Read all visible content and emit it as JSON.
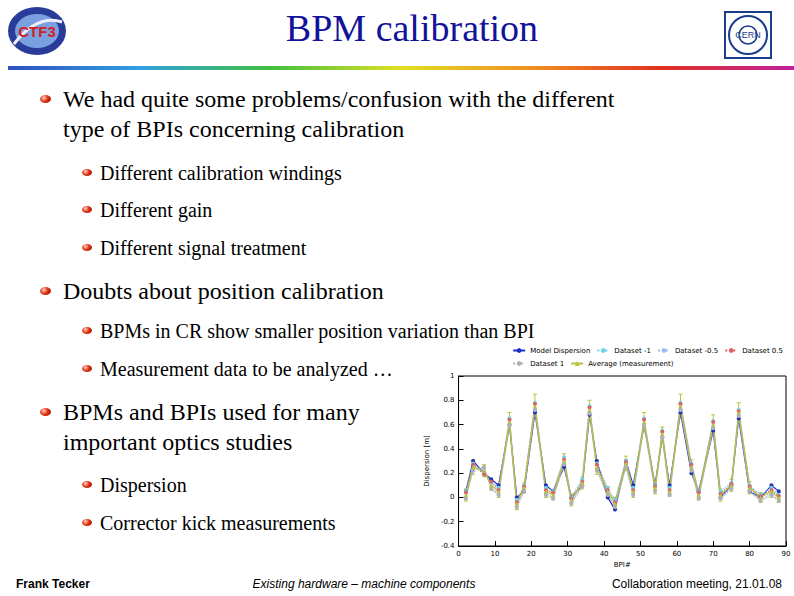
{
  "header": {
    "title": "BPM calibration"
  },
  "logos": {
    "left": "CTF3",
    "right": "CERN"
  },
  "bullets": [
    {
      "level": 1,
      "lines": [
        "We had quite some problems/confusion with the different",
        "type of BPIs concerning calibration"
      ]
    },
    {
      "level": 2,
      "lines": [
        "Different calibration windings"
      ]
    },
    {
      "level": 2,
      "lines": [
        "Different gain"
      ]
    },
    {
      "level": 2,
      "lines": [
        "Different signal treatment"
      ]
    },
    {
      "level": 1,
      "lines": [
        "Doubts about position calibration"
      ]
    },
    {
      "level": 2,
      "lines": [
        "BPMs in CR show smaller position variation than BPI"
      ]
    },
    {
      "level": 2,
      "lines": [
        "Measurement data to be analyzed …"
      ]
    },
    {
      "level": 1,
      "lines": [
        "BPMs and BPIs used for many",
        "important optics studies"
      ]
    },
    {
      "level": 2,
      "lines": [
        "Dispersion"
      ]
    },
    {
      "level": 2,
      "lines": [
        "Corrector kick measurements"
      ]
    }
  ],
  "footer": {
    "left": "Frank Tecker",
    "center": "Existing hardware – machine components",
    "right": "Collaboration meeting, 21.01.08"
  },
  "chart_data": {
    "type": "line",
    "x_label": "BPI#",
    "y_label": "Dispersion [m]",
    "legend": "top-right",
    "grid": false,
    "x": [
      2,
      4,
      7,
      9,
      11,
      14,
      16,
      18,
      21,
      24,
      26,
      29,
      31,
      34,
      36,
      38,
      41,
      43,
      46,
      48,
      51,
      54,
      56,
      58,
      61,
      64,
      66,
      70,
      72,
      75,
      77,
      80,
      83,
      86,
      88
    ],
    "xlim": [
      0,
      90
    ],
    "xticks": [
      0,
      10,
      20,
      30,
      40,
      50,
      60,
      70,
      80,
      90
    ],
    "ylim": [
      -0.4,
      1
    ],
    "yticks": [
      -0.4,
      -0.2,
      0,
      0.2,
      0.4,
      0.6,
      0.8,
      1
    ],
    "series": [
      {
        "name": "Model Dispersion",
        "color": "#1c2fbf",
        "marker": "circle",
        "line_style": "solid",
        "values": [
          0.05,
          0.3,
          0.2,
          0.15,
          0.1,
          0.6,
          0.0,
          0.05,
          0.7,
          0.1,
          0.05,
          0.25,
          0.0,
          0.1,
          0.68,
          0.3,
          0.0,
          -0.1,
          0.3,
          0.1,
          0.6,
          0.1,
          0.5,
          0.1,
          0.7,
          0.2,
          0.05,
          0.55,
          0.0,
          0.1,
          0.65,
          0.05,
          0.0,
          0.1,
          0.05
        ]
      },
      {
        "name": "Dataset -1",
        "color": "#70d0e8",
        "marker": "circle",
        "line_style": "dotted",
        "values": [
          0.05,
          0.28,
          0.2,
          0.12,
          0.08,
          0.65,
          -0.02,
          0.1,
          0.78,
          0.08,
          0.05,
          0.33,
          0.0,
          0.15,
          0.75,
          0.28,
          0.08,
          -0.02,
          0.3,
          0.08,
          0.65,
          0.1,
          0.55,
          0.08,
          0.78,
          0.28,
          0.05,
          0.63,
          0.05,
          0.12,
          0.72,
          0.1,
          0.02,
          0.08,
          0.02
        ]
      },
      {
        "name": "Dataset -0.5",
        "color": "#9fb8f0",
        "marker": "circle",
        "line_style": "dotted",
        "values": [
          0.0,
          0.22,
          0.24,
          0.08,
          0.03,
          0.6,
          -0.07,
          0.06,
          0.72,
          0.03,
          0.0,
          0.28,
          -0.04,
          0.1,
          0.7,
          0.23,
          0.03,
          -0.07,
          0.26,
          0.03,
          0.6,
          0.06,
          0.5,
          0.03,
          0.72,
          0.23,
          0.0,
          0.58,
          0.0,
          0.08,
          0.68,
          0.06,
          -0.02,
          0.03,
          -0.02
        ]
      },
      {
        "name": "Dataset 0.5",
        "color": "#e06060",
        "marker": "circle",
        "line_style": "dotted",
        "values": [
          0.04,
          0.27,
          0.19,
          0.13,
          0.06,
          0.64,
          -0.04,
          0.09,
          0.77,
          0.06,
          0.04,
          0.31,
          -0.01,
          0.13,
          0.74,
          0.27,
          0.06,
          -0.04,
          0.29,
          0.06,
          0.64,
          0.09,
          0.54,
          0.06,
          0.77,
          0.27,
          0.04,
          0.62,
          0.03,
          0.11,
          0.71,
          0.09,
          0.01,
          0.06,
          0.01
        ]
      },
      {
        "name": "Dataset 1",
        "color": "#b0b0b0",
        "marker": "circle",
        "line_style": "dotted",
        "values": [
          -0.01,
          0.23,
          0.25,
          0.07,
          0.02,
          0.59,
          -0.08,
          0.05,
          0.73,
          0.02,
          -0.01,
          0.27,
          -0.05,
          0.09,
          0.69,
          0.22,
          0.02,
          -0.08,
          0.25,
          0.02,
          0.59,
          0.05,
          0.49,
          0.02,
          0.73,
          0.22,
          -0.01,
          0.57,
          -0.01,
          0.07,
          0.67,
          0.05,
          -0.03,
          0.02,
          -0.03
        ]
      },
      {
        "name": "Average (measurement)",
        "color": "#b8c43c",
        "marker": "triangle",
        "line_style": "solid",
        "values": [
          0.02,
          0.25,
          0.22,
          0.1,
          0.05,
          0.62,
          -0.05,
          0.08,
          0.75,
          0.05,
          0.02,
          0.3,
          -0.02,
          0.12,
          0.72,
          0.25,
          0.05,
          -0.05,
          0.28,
          0.05,
          0.62,
          0.08,
          0.52,
          0.05,
          0.75,
          0.25,
          0.02,
          0.6,
          0.02,
          0.1,
          0.7,
          0.08,
          0.0,
          0.05,
          0.0
        ],
        "errors": [
          0.05,
          0.06,
          0.05,
          0.04,
          0.05,
          0.08,
          0.05,
          0.04,
          0.1,
          0.05,
          0.04,
          0.06,
          0.05,
          0.05,
          0.08,
          0.06,
          0.04,
          0.05,
          0.06,
          0.05,
          0.08,
          0.05,
          0.06,
          0.04,
          0.1,
          0.06,
          0.04,
          0.08,
          0.05,
          0.05,
          0.08,
          0.05,
          0.04,
          0.05,
          0.04
        ]
      }
    ]
  }
}
